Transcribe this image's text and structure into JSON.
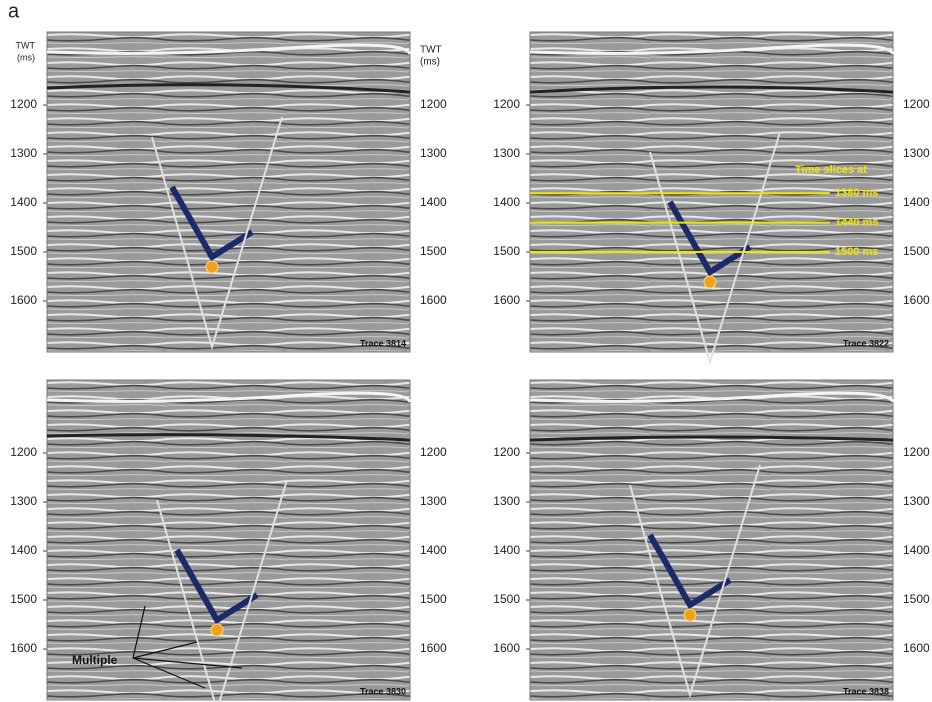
{
  "figure_label": "a",
  "axis_title": [
    "TWT",
    "(ms)"
  ],
  "panels": [
    {
      "trace": "Trace 3814",
      "ticks": [
        1200,
        1300,
        1400,
        1500,
        1600
      ]
    },
    {
      "trace": "Trace 3822",
      "ticks": [
        1200,
        1300,
        1400,
        1500,
        1600
      ],
      "time_slices": {
        "title": "Time slices at",
        "slices": [
          {
            "value": 1380,
            "label": "1380 ms"
          },
          {
            "value": 1440,
            "label": "1440 ms"
          },
          {
            "value": 1500,
            "label": "1500 ms"
          }
        ]
      }
    },
    {
      "trace": "Trace 3830",
      "ticks": [
        1200,
        1300,
        1400,
        1500,
        1600
      ],
      "annotation": "Multiple"
    },
    {
      "trace": "Trace 3838",
      "ticks": [
        1200,
        1300,
        1400,
        1500,
        1600
      ]
    }
  ]
}
